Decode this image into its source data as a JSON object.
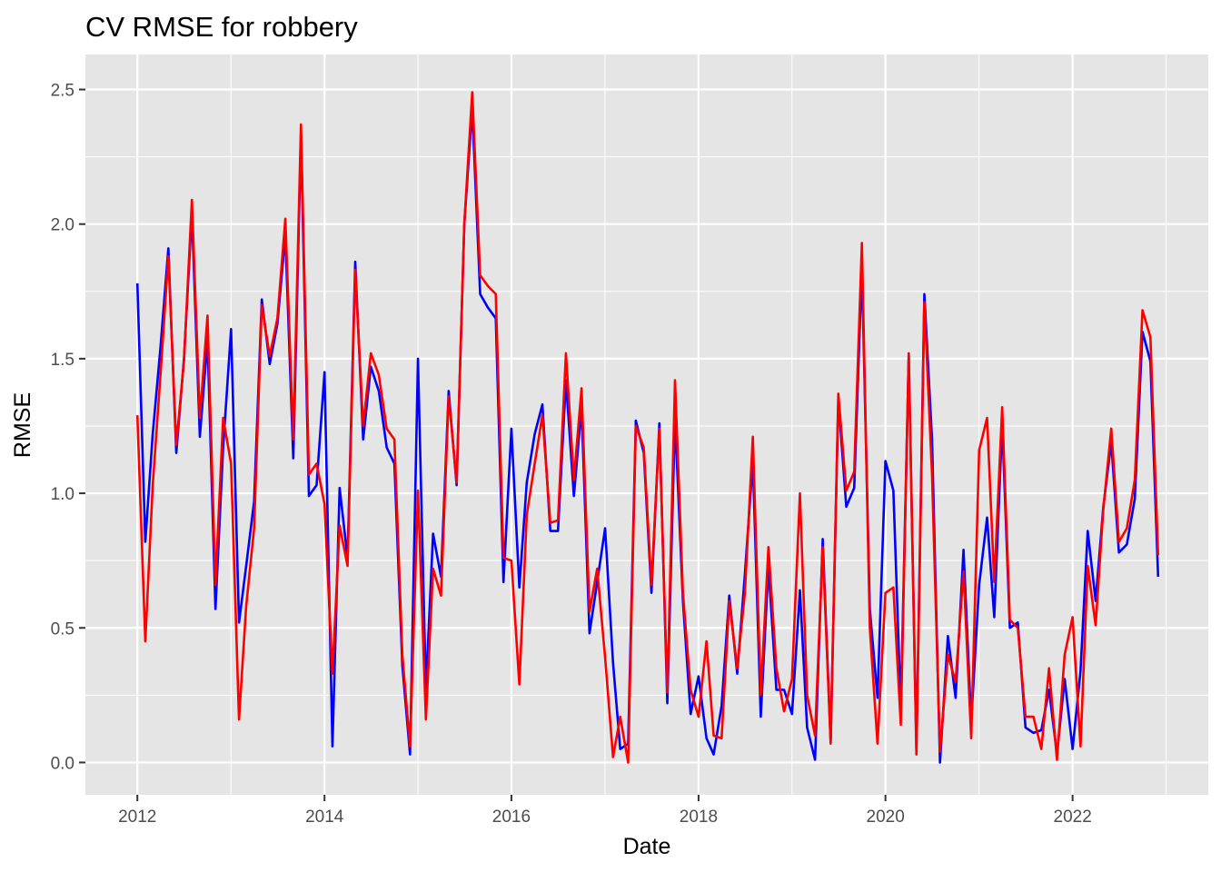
{
  "chart_data": {
    "type": "line",
    "title": "CV RMSE for robbery",
    "xlabel": "Date",
    "ylabel": "RMSE",
    "x_axis": "date",
    "x_range": [
      "2011-06-12",
      "2023-06-15"
    ],
    "xticks": [
      {
        "x": "2012-01-01",
        "label": "2012"
      },
      {
        "x": "2014-01-01",
        "label": "2014"
      },
      {
        "x": "2016-01-01",
        "label": "2016"
      },
      {
        "x": "2018-01-01",
        "label": "2018"
      },
      {
        "x": "2020-01-01",
        "label": "2020"
      },
      {
        "x": "2022-01-01",
        "label": "2022"
      }
    ],
    "ylim": [
      -0.12,
      2.63
    ],
    "yticks": [
      {
        "y": 0.0,
        "label": "0.0"
      },
      {
        "y": 0.5,
        "label": "0.5"
      },
      {
        "y": 1.0,
        "label": "1.0"
      },
      {
        "y": 1.5,
        "label": "1.5"
      },
      {
        "y": 2.0,
        "label": "2.0"
      },
      {
        "y": 2.5,
        "label": "2.5"
      }
    ],
    "grid": true,
    "legend": "none",
    "panel_color": "#e5e5e5",
    "grid_color": "#ffffff",
    "x": [
      "2012-01-01",
      "2012-02-01",
      "2012-03-01",
      "2012-04-01",
      "2012-05-01",
      "2012-06-01",
      "2012-07-01",
      "2012-08-01",
      "2012-09-01",
      "2012-10-01",
      "2012-11-01",
      "2012-12-01",
      "2013-01-01",
      "2013-02-01",
      "2013-03-01",
      "2013-04-01",
      "2013-05-01",
      "2013-06-01",
      "2013-07-01",
      "2013-08-01",
      "2013-09-01",
      "2013-10-01",
      "2013-11-01",
      "2013-12-01",
      "2014-01-01",
      "2014-02-01",
      "2014-03-01",
      "2014-04-01",
      "2014-05-01",
      "2014-06-01",
      "2014-07-01",
      "2014-08-01",
      "2014-09-01",
      "2014-10-01",
      "2014-11-01",
      "2014-12-01",
      "2015-01-01",
      "2015-02-01",
      "2015-03-01",
      "2015-04-01",
      "2015-05-01",
      "2015-06-01",
      "2015-07-01",
      "2015-08-01",
      "2015-09-01",
      "2015-10-01",
      "2015-11-01",
      "2015-12-01",
      "2016-01-01",
      "2016-02-01",
      "2016-03-01",
      "2016-04-01",
      "2016-05-01",
      "2016-06-01",
      "2016-07-01",
      "2016-08-01",
      "2016-09-01",
      "2016-10-01",
      "2016-11-01",
      "2016-12-01",
      "2017-01-01",
      "2017-02-01",
      "2017-03-01",
      "2017-04-01",
      "2017-05-01",
      "2017-06-01",
      "2017-07-01",
      "2017-08-01",
      "2017-09-01",
      "2017-10-01",
      "2017-11-01",
      "2017-12-01",
      "2018-01-01",
      "2018-02-01",
      "2018-03-01",
      "2018-04-01",
      "2018-05-01",
      "2018-06-01",
      "2018-07-01",
      "2018-08-01",
      "2018-09-01",
      "2018-10-01",
      "2018-11-01",
      "2018-12-01",
      "2019-01-01",
      "2019-02-01",
      "2019-03-01",
      "2019-04-01",
      "2019-05-01",
      "2019-06-01",
      "2019-07-01",
      "2019-08-01",
      "2019-09-01",
      "2019-10-01",
      "2019-11-01",
      "2019-12-01",
      "2020-01-01",
      "2020-02-01",
      "2020-03-01",
      "2020-04-01",
      "2020-05-01",
      "2020-06-01",
      "2020-07-01",
      "2020-08-01",
      "2020-09-01",
      "2020-10-01",
      "2020-11-01",
      "2020-12-01",
      "2021-01-01",
      "2021-02-01",
      "2021-03-01",
      "2021-04-01",
      "2021-05-01",
      "2021-06-01",
      "2021-07-01",
      "2021-08-01",
      "2021-09-01",
      "2021-10-01",
      "2021-11-01",
      "2021-12-01",
      "2022-01-01",
      "2022-02-01",
      "2022-03-01",
      "2022-04-01",
      "2022-05-01",
      "2022-06-01",
      "2022-07-01",
      "2022-08-01",
      "2022-09-01",
      "2022-10-01",
      "2022-11-01",
      "2022-12-01"
    ],
    "series": [
      {
        "color": "#0000ff",
        "values": [
          1.78,
          0.82,
          1.22,
          1.55,
          1.91,
          1.15,
          1.5,
          2.04,
          1.21,
          1.57,
          0.57,
          1.17,
          1.61,
          0.52,
          0.73,
          0.97,
          1.72,
          1.48,
          1.63,
          1.96,
          1.13,
          2.33,
          0.99,
          1.03,
          1.45,
          0.06,
          1.02,
          0.76,
          1.86,
          1.2,
          1.47,
          1.38,
          1.17,
          1.11,
          0.36,
          0.03,
          1.5,
          0.27,
          0.85,
          0.69,
          1.38,
          1.03,
          2.0,
          2.43,
          1.74,
          1.69,
          1.65,
          0.67,
          1.24,
          0.65,
          1.04,
          1.22,
          1.33,
          0.86,
          0.86,
          1.42,
          0.99,
          1.32,
          0.48,
          0.67,
          0.87,
          0.37,
          0.05,
          0.07,
          1.27,
          1.15,
          0.63,
          1.26,
          0.22,
          1.28,
          0.6,
          0.18,
          0.32,
          0.09,
          0.03,
          0.21,
          0.62,
          0.33,
          0.7,
          1.12,
          0.17,
          0.73,
          0.27,
          0.27,
          0.18,
          0.64,
          0.13,
          0.01,
          0.83,
          0.08,
          1.35,
          0.95,
          1.02,
          1.84,
          0.57,
          0.24,
          1.12,
          1.01,
          0.2,
          1.51,
          0.05,
          1.74,
          1.2,
          0.0,
          0.47,
          0.24,
          0.79,
          0.15,
          0.66,
          0.91,
          0.54,
          1.26,
          0.5,
          0.52,
          0.13,
          0.11,
          0.12,
          0.27,
          0.03,
          0.31,
          0.05,
          0.34,
          0.86,
          0.6,
          0.95,
          1.19,
          0.78,
          0.81,
          0.98,
          1.6,
          1.49,
          0.69
        ]
      },
      {
        "color": "#ff0000",
        "values": [
          1.29,
          0.45,
          1.03,
          1.45,
          1.88,
          1.18,
          1.49,
          2.09,
          1.28,
          1.66,
          0.66,
          1.28,
          1.11,
          0.16,
          0.58,
          0.87,
          1.7,
          1.51,
          1.65,
          2.02,
          1.2,
          2.37,
          1.07,
          1.11,
          0.96,
          0.33,
          0.88,
          0.73,
          1.83,
          1.25,
          1.52,
          1.44,
          1.24,
          1.2,
          0.4,
          0.06,
          1.01,
          0.16,
          0.72,
          0.62,
          1.36,
          1.04,
          2.0,
          2.49,
          1.81,
          1.77,
          1.74,
          0.76,
          0.75,
          0.29,
          0.92,
          1.11,
          1.29,
          0.89,
          0.9,
          1.52,
          1.05,
          1.39,
          0.56,
          0.72,
          0.39,
          0.02,
          0.17,
          0.0,
          1.25,
          1.17,
          0.66,
          1.24,
          0.26,
          1.42,
          0.63,
          0.27,
          0.17,
          0.45,
          0.1,
          0.09,
          0.6,
          0.35,
          0.63,
          1.21,
          0.25,
          0.8,
          0.35,
          0.19,
          0.31,
          1.0,
          0.25,
          0.1,
          0.8,
          0.07,
          1.37,
          1.01,
          1.08,
          1.93,
          0.5,
          0.07,
          0.63,
          0.65,
          0.14,
          1.52,
          0.03,
          1.71,
          1.07,
          0.04,
          0.4,
          0.3,
          0.71,
          0.09,
          1.16,
          1.28,
          0.67,
          1.32,
          0.53,
          0.5,
          0.17,
          0.17,
          0.05,
          0.35,
          0.01,
          0.4,
          0.54,
          0.06,
          0.73,
          0.51,
          0.94,
          1.24,
          0.82,
          0.87,
          1.05,
          1.68,
          1.58,
          0.77
        ]
      }
    ]
  }
}
